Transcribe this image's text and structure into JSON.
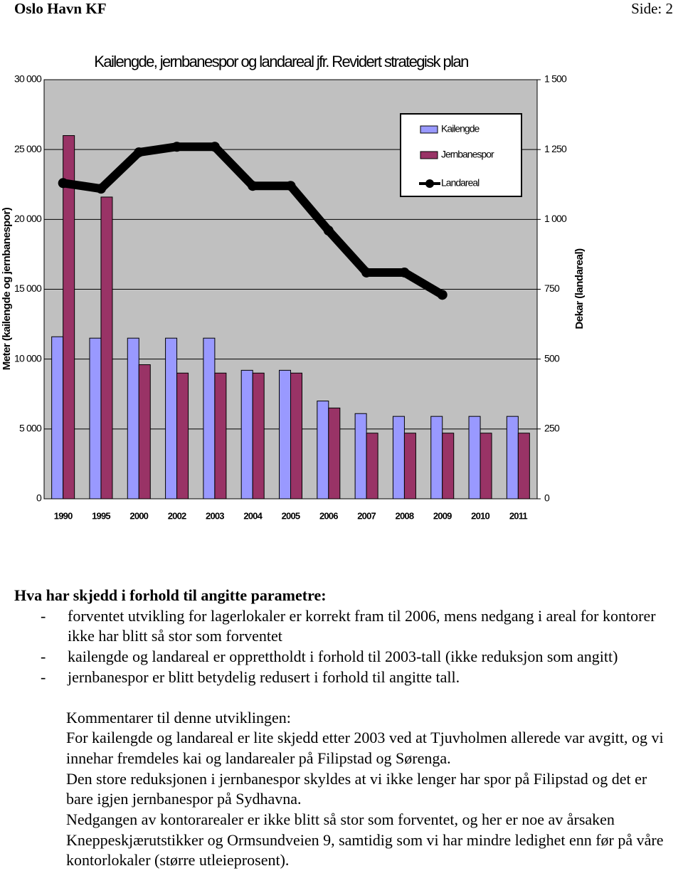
{
  "header": {
    "left": "Oslo Havn KF",
    "right": "Side:  2"
  },
  "chart_data": {
    "type": "bar",
    "title": "Kailengde, jernbanespor og landareal jfr. Revidert strategisk plan",
    "y_label": "Meter (kailengde og jernbanespor)",
    "y2_label": "Dekar (landareal)",
    "categories": [
      "1990",
      "1995",
      "2000",
      "2002",
      "2003",
      "2004",
      "2005",
      "2006",
      "2007",
      "2008",
      "2009",
      "2010",
      "2011"
    ],
    "series": [
      {
        "name": "Kailengde",
        "color": "#9999ff",
        "values": [
          11600,
          11500,
          11500,
          11500,
          11500,
          9200,
          9200,
          7000,
          6100,
          5900,
          5900,
          5900,
          5900
        ]
      },
      {
        "name": "Jernbanespor",
        "color": "#993366",
        "values": [
          26000,
          21600,
          9600,
          9000,
          9000,
          9000,
          9000,
          6500,
          4700,
          4700,
          4700,
          4700,
          4700
        ]
      },
      {
        "name": "Landareal",
        "color": "#000000",
        "type": "line",
        "axis": "y2",
        "values": [
          1130,
          1110,
          1240,
          1260,
          1260,
          1120,
          1120,
          960,
          810,
          810,
          730,
          null,
          null
        ]
      }
    ],
    "ylim": [
      0,
      30000
    ],
    "yticks": [
      0,
      {
        "value": 5000,
        "label": "5 000"
      },
      {
        "value": 10000,
        "label": "10 000"
      },
      {
        "value": 15000,
        "label": "15 000"
      },
      {
        "value": 20000,
        "label": "20 000"
      },
      {
        "value": 25000,
        "label": "25 000"
      },
      {
        "value": 30000,
        "label": "30 000"
      }
    ],
    "y2lim": [
      0,
      1500
    ],
    "y2ticks": [
      0,
      250,
      500,
      750,
      {
        "value": 1000,
        "label": "1 000"
      },
      {
        "value": 1250,
        "label": "1 250"
      },
      {
        "value": 1500,
        "label": "1 500"
      }
    ],
    "grid": true,
    "legend": "upper right"
  },
  "text": {
    "heading": "Hva har skjedd i forhold til angitte parametre:",
    "bullets": [
      "forventet utvikling for lagerlokaler er korrekt fram til 2006, mens nedgang i areal for kontorer ikke har blitt så stor som forventet",
      "kailengde og landareal er opprettholdt i forhold til 2003-tall (ikke reduksjon som angitt)",
      "jernbanespor er blitt betydelig redusert i forhold til angitte tall."
    ],
    "bullet_marker": "-",
    "comment_title": "Kommentarer til denne utviklingen:",
    "paragraphs": [
      "For kailengde og landareal er lite skjedd etter 2003 ved at Tjuvholmen allerede var avgitt, og vi innehar fremdeles kai og landarealer på Filipstad og Sørenga.",
      "Den store reduksjonen i jernbanespor skyldes at vi ikke lenger har spor på Filipstad og det er bare igjen jernbanespor på Sydhavna.",
      "Nedgangen av kontorarealer er ikke blitt så stor som forventet, og her er noe av årsaken Kneppeskjærutstikker og Ormsundveien 9, samtidig som vi har mindre ledighet enn før på våre kontorlokaler (større utleieprosent)."
    ]
  }
}
